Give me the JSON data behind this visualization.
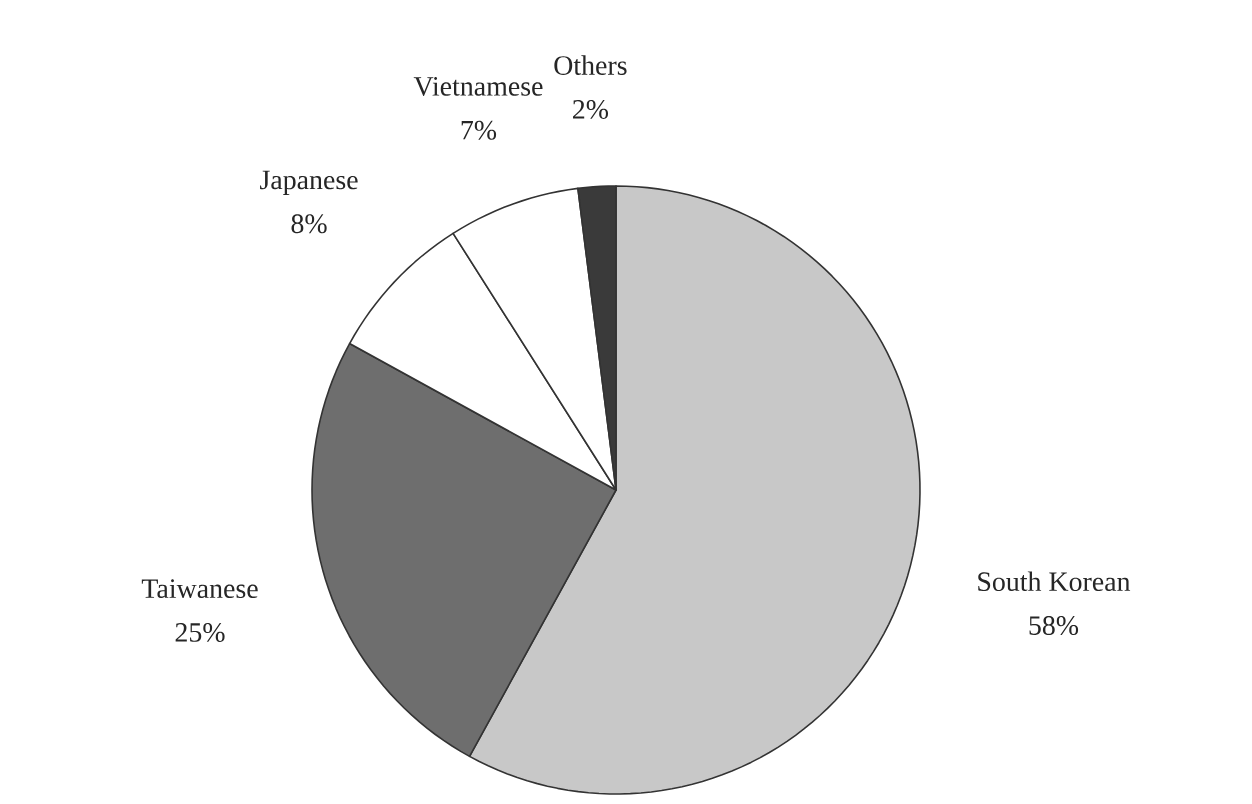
{
  "chart_data": {
    "type": "pie",
    "categories": [
      "South Korean",
      "Taiwanese",
      "Japanese",
      "Vietnamese",
      "Others"
    ],
    "values": [
      58,
      25,
      8,
      7,
      2
    ],
    "value_labels": [
      "58%",
      "25%",
      "8%",
      "7%",
      "2%"
    ],
    "colors": [
      "#c8c8c8",
      "#6e6e6e",
      "#ffffff",
      "#ffffff",
      "#3a3a3a"
    ]
  }
}
